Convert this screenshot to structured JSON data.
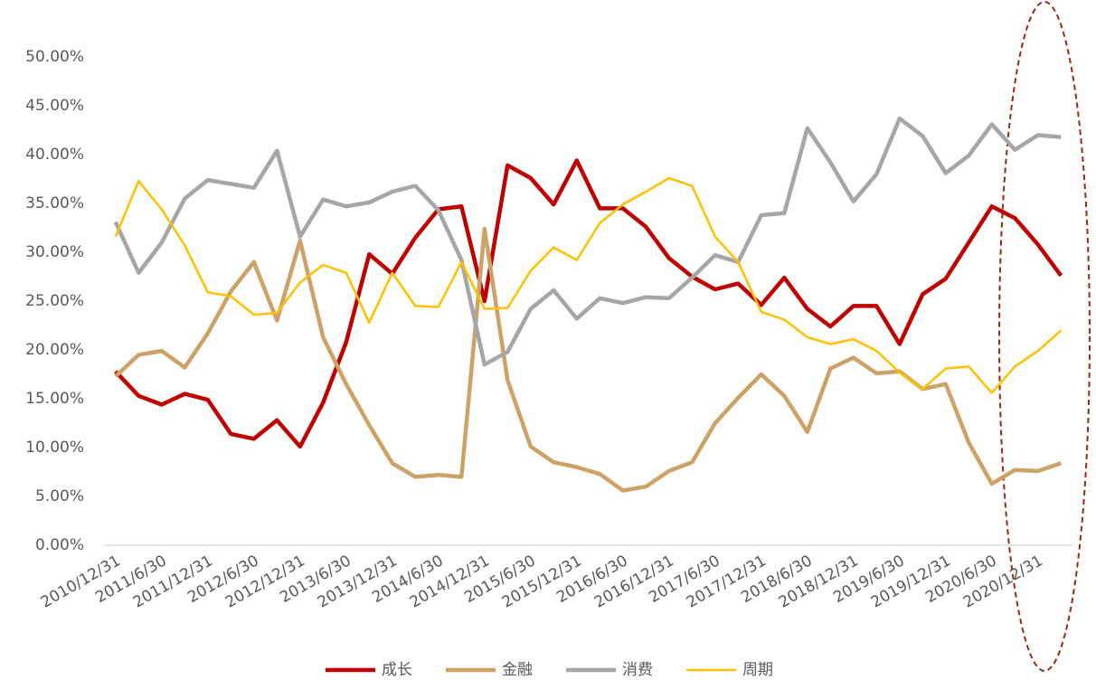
{
  "chart_data": {
    "type": "line",
    "categories": [
      "2010/12/31",
      null,
      "2011/6/30",
      null,
      "2011/12/31",
      null,
      "2012/6/30",
      null,
      "2012/12/31",
      null,
      "2013/6/30",
      null,
      "2013/12/31",
      null,
      "2014/6/30",
      null,
      "2014/12/31",
      null,
      "2015/6/30",
      null,
      "2015/12/31",
      null,
      "2016/6/30",
      null,
      "2016/12/31",
      null,
      "2017/6/30",
      null,
      "2017/12/31",
      null,
      "2018/6/30",
      null,
      "2018/12/31",
      null,
      "2019/6/30",
      null,
      "2019/12/31",
      null,
      "2020/6/30",
      null,
      "2020/12/31",
      null
    ],
    "series": [
      {
        "name": "成长",
        "color": "#c00000",
        "values": [
          17.8,
          15.3,
          14.4,
          15.5,
          14.9,
          11.4,
          10.9,
          12.8,
          10.1,
          14.6,
          20.8,
          29.8,
          27.8,
          31.5,
          34.4,
          34.7,
          25.0,
          38.9,
          37.6,
          34.9,
          39.4,
          34.5,
          34.5,
          32.6,
          29.4,
          27.5,
          26.2,
          26.8,
          24.6,
          27.4,
          24.2,
          22.4,
          24.5,
          24.5,
          20.6,
          25.7,
          27.3,
          31.0,
          34.7,
          33.5,
          30.8,
          27.6
        ]
      },
      {
        "name": "金融",
        "color": "#cda266",
        "values": [
          17.3,
          19.5,
          19.9,
          18.2,
          21.7,
          26.0,
          29.0,
          23.0,
          31.2,
          21.3,
          16.5,
          12.3,
          8.4,
          7.0,
          7.2,
          7.0,
          32.4,
          16.9,
          10.1,
          8.5,
          8.0,
          7.3,
          5.6,
          6.0,
          7.6,
          8.5,
          12.5,
          15.1,
          17.5,
          15.3,
          11.6,
          18.1,
          19.2,
          17.6,
          17.8,
          16.0,
          16.5,
          10.5,
          6.3,
          7.7,
          7.6,
          8.4
        ]
      },
      {
        "name": "消费",
        "color": "#a6a6a6",
        "values": [
          33.1,
          27.9,
          31.0,
          35.5,
          37.4,
          37.0,
          36.6,
          40.4,
          31.6,
          35.4,
          34.7,
          35.1,
          36.2,
          36.8,
          34.3,
          29.2,
          18.5,
          19.8,
          24.2,
          26.1,
          23.2,
          25.3,
          24.8,
          25.4,
          25.3,
          27.4,
          29.7,
          29.0,
          33.8,
          34.0,
          42.7,
          39.2,
          35.2,
          38.0,
          43.7,
          41.9,
          38.1,
          39.9,
          43.1,
          40.5,
          42.0,
          41.8
        ]
      },
      {
        "name": "周期",
        "color": "#ffc000",
        "values": [
          31.6,
          37.3,
          34.4,
          30.7,
          25.9,
          25.5,
          23.6,
          23.8,
          26.9,
          28.7,
          27.9,
          22.8,
          27.9,
          24.5,
          24.4,
          29.0,
          24.2,
          24.3,
          28.1,
          30.5,
          29.2,
          33.0,
          34.9,
          36.2,
          37.6,
          36.8,
          31.6,
          29.0,
          23.9,
          23.1,
          21.3,
          20.6,
          21.1,
          19.9,
          17.7,
          16.0,
          18.1,
          18.3,
          15.6,
          18.3,
          19.9,
          22.0
        ]
      }
    ],
    "ylim": [
      0,
      50
    ],
    "yticks": [
      {
        "value": 0,
        "label": "0.00%"
      },
      {
        "value": 5,
        "label": "5.00%"
      },
      {
        "value": 10,
        "label": "10.00%"
      },
      {
        "value": 15,
        "label": "15.00%"
      },
      {
        "value": 20,
        "label": "20.00%"
      },
      {
        "value": 25,
        "label": "25.00%"
      },
      {
        "value": 30,
        "label": "30.00%"
      },
      {
        "value": 35,
        "label": "35.00%"
      },
      {
        "value": 40,
        "label": "40.00%"
      },
      {
        "value": 45,
        "label": "45.00%"
      },
      {
        "value": 50,
        "label": "50.00%"
      }
    ],
    "grid": false,
    "legend": "bottom"
  }
}
